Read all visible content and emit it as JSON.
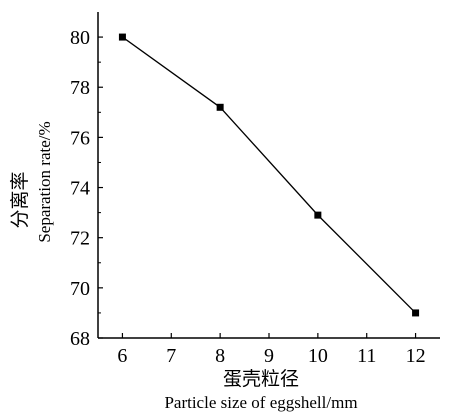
{
  "chart_data": {
    "type": "line",
    "x": [
      6,
      8,
      10,
      12
    ],
    "series": [
      {
        "values": [
          80.0,
          77.2,
          72.9,
          69.0
        ],
        "color": "#000000",
        "marker": "square"
      }
    ],
    "xlabel_cn": "蛋壳粒径",
    "xlabel_en": "Particle size of eggshell/mm",
    "ylabel_cn": "分离率",
    "ylabel_en": "Separation rate/%",
    "xlim": [
      5.5,
      12.5
    ],
    "ylim": [
      68,
      81
    ],
    "xticks": [
      6,
      7,
      8,
      9,
      10,
      11,
      12
    ],
    "yticks": [
      68,
      70,
      72,
      74,
      76,
      78,
      80
    ],
    "grid": false
  }
}
